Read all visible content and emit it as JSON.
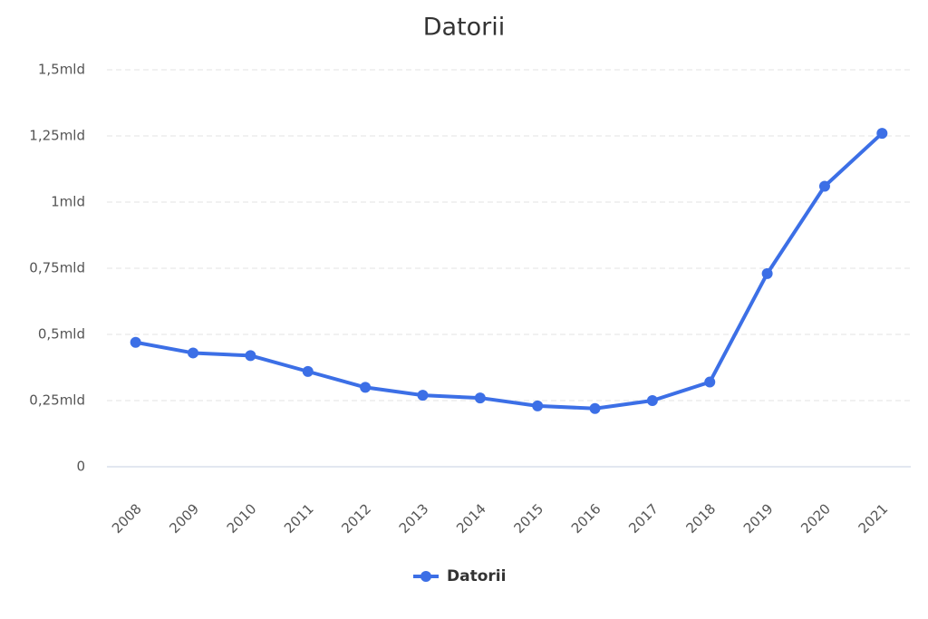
{
  "chart_data": {
    "type": "line",
    "title": "Datorii",
    "categories": [
      "2008",
      "2009",
      "2010",
      "2011",
      "2012",
      "2013",
      "2014",
      "2015",
      "2016",
      "2017",
      "2018",
      "2019",
      "2020",
      "2021"
    ],
    "series": [
      {
        "name": "Datorii",
        "color": "#3c6fe6",
        "values": [
          0.47,
          0.43,
          0.42,
          0.36,
          0.3,
          0.27,
          0.26,
          0.23,
          0.22,
          0.25,
          0.32,
          0.73,
          1.06,
          1.26
        ]
      }
    ],
    "ylim": [
      0,
      1.5
    ],
    "yticks": [
      0,
      {
        "value": 0.25,
        "label": "0,25mld"
      },
      {
        "value": 0.5,
        "label": "0,5mld"
      },
      {
        "value": 0.75,
        "label": "0,75mld"
      },
      {
        "value": 1,
        "label": "1mld"
      },
      {
        "value": 1.25,
        "label": "1,25mld"
      },
      {
        "value": 1.5,
        "label": "1,5mld"
      }
    ],
    "grid": true,
    "legend": "bottom"
  }
}
